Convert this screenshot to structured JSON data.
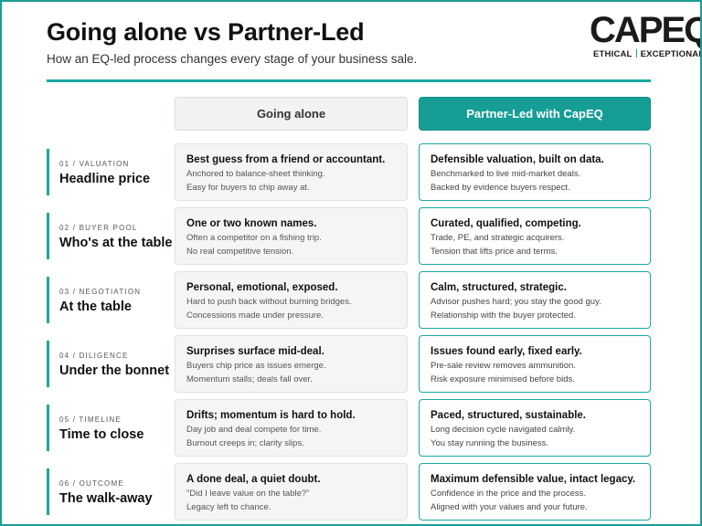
{
  "title": "Going alone vs Partner-Led",
  "subtitle": "How an EQ-led process changes every stage of your business sale.",
  "logo": {
    "word": "CAPEQ",
    "tag_left": "ETHICAL",
    "tag_right": "EXCEPTIONAL",
    "accent": "#1a9e96"
  },
  "columns": {
    "alone": "Going alone",
    "partner": "Partner-Led with CapEQ"
  },
  "rows": [
    {
      "kicker": "01 / VALUATION",
      "name": "Headline price",
      "alone": {
        "head": "Best guess from a friend or accountant.",
        "l1": "Anchored to balance-sheet thinking.",
        "l2": "Easy for buyers to chip away at."
      },
      "partner": {
        "head": "Defensible valuation, built on data.",
        "l1": "Benchmarked to live mid-market deals.",
        "l2": "Backed by evidence buyers respect."
      }
    },
    {
      "kicker": "02 / BUYER POOL",
      "name": "Who's at the table",
      "alone": {
        "head": "One or two known names.",
        "l1": "Often a competitor on a fishing trip.",
        "l2": "No real competitive tension."
      },
      "partner": {
        "head": "Curated, qualified, competing.",
        "l1": "Trade, PE, and strategic acquirers.",
        "l2": "Tension that lifts price and terms."
      }
    },
    {
      "kicker": "03 / NEGOTIATION",
      "name": "At the table",
      "alone": {
        "head": "Personal, emotional, exposed.",
        "l1": "Hard to push back without burning bridges.",
        "l2": "Concessions made under pressure."
      },
      "partner": {
        "head": "Calm, structured, strategic.",
        "l1": "Advisor pushes hard; you stay the good guy.",
        "l2": "Relationship with the buyer protected."
      }
    },
    {
      "kicker": "04 / DILIGENCE",
      "name": "Under the bonnet",
      "alone": {
        "head": "Surprises surface mid-deal.",
        "l1": "Buyers chip price as issues emerge.",
        "l2": "Momentum stalls; deals fall over."
      },
      "partner": {
        "head": "Issues found early, fixed early.",
        "l1": "Pre-sale review removes ammunition.",
        "l2": "Risk exposure minimised before bids."
      }
    },
    {
      "kicker": "05 / TIMELINE",
      "name": "Time to close",
      "alone": {
        "head": "Drifts; momentum is hard to hold.",
        "l1": "Day job and deal compete for time.",
        "l2": "Burnout creeps in; clarity slips."
      },
      "partner": {
        "head": "Paced, structured, sustainable.",
        "l1": "Long decision cycle navigated calmly.",
        "l2": "You stay running the business."
      }
    },
    {
      "kicker": "06 / OUTCOME",
      "name": "The walk-away",
      "alone": {
        "head": "A done deal, a quiet doubt.",
        "l1": "\"Did I leave value on the table?\"",
        "l2": "Legacy left to chance."
      },
      "partner": {
        "head": "Maximum defensible value, intact legacy.",
        "l1": "Confidence in the price and the process.",
        "l2": "Aligned with your values and your future."
      }
    }
  ]
}
